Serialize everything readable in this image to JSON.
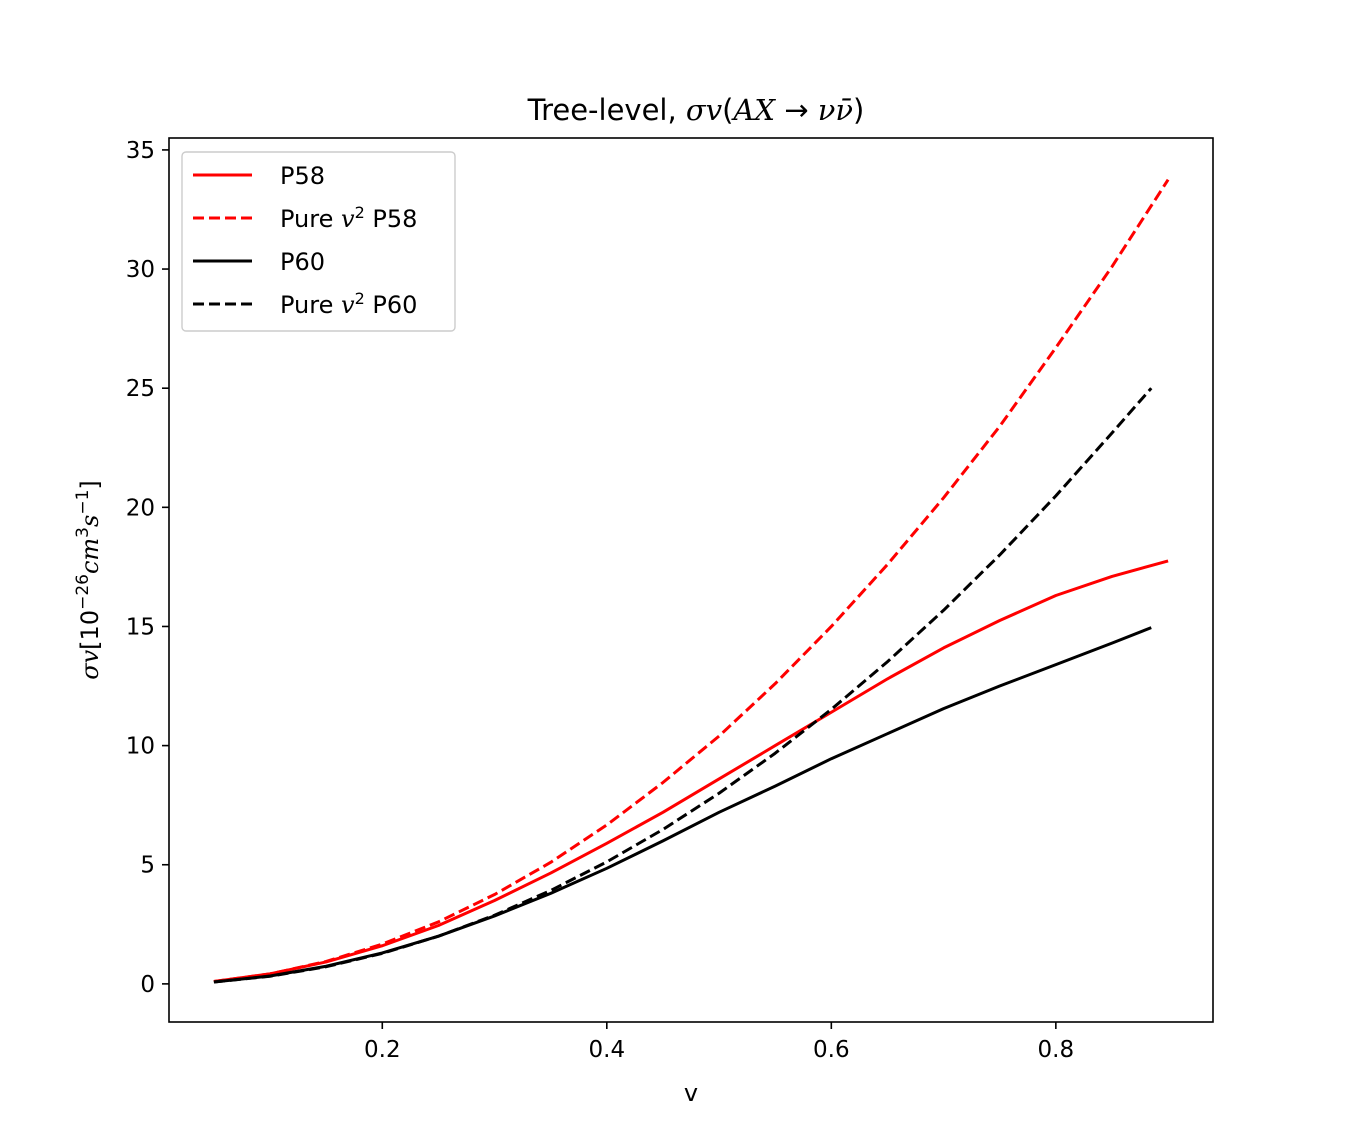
{
  "chart_data": {
    "type": "line",
    "title": "Tree-level, σv(AX → νν̄)",
    "title_parts": {
      "prefix": "Tree-level, ",
      "sigma_v": "σv",
      "open": "(",
      "initial": "AX",
      "arrow": " → ",
      "final": "νν̄",
      "close": ")"
    },
    "xlabel": "v",
    "ylabel": "σv[10⁻²⁶cm³s⁻¹]",
    "ylabel_parts": {
      "sigma_v": "σv",
      "open": "[",
      "base": "10",
      "exp1": "−26",
      "cm": "cm",
      "exp2": "3",
      "s": "s",
      "exp3": "−1",
      "close": "]"
    },
    "xlim": [
      0.01,
      0.94
    ],
    "ylim": [
      -1.6,
      35.5
    ],
    "x_ticks": [
      0.2,
      0.4,
      0.6,
      0.8
    ],
    "x_tick_labels": [
      "0.2",
      "0.4",
      "0.6",
      "0.8"
    ],
    "y_ticks": [
      0,
      5,
      10,
      15,
      20,
      25,
      30,
      35
    ],
    "y_tick_labels": [
      "0",
      "5",
      "10",
      "15",
      "20",
      "25",
      "30",
      "35"
    ],
    "grid": false,
    "legend_position": "top-left",
    "series": [
      {
        "name": "P58",
        "legend_parts": {
          "pre": "P58",
          "var": "",
          "sup": "",
          "post": ""
        },
        "color": "#ff0000",
        "dash": "solid",
        "x": [
          0.05,
          0.1,
          0.15,
          0.2,
          0.25,
          0.3,
          0.35,
          0.4,
          0.45,
          0.5,
          0.55,
          0.6,
          0.65,
          0.7,
          0.75,
          0.8,
          0.85,
          0.9
        ],
        "y": [
          0.1,
          0.42,
          0.92,
          1.6,
          2.45,
          3.5,
          4.65,
          5.9,
          7.2,
          8.6,
          10.0,
          11.4,
          12.8,
          14.1,
          15.25,
          16.3,
          17.1,
          17.75
        ]
      },
      {
        "name": "Pure v² P58",
        "legend_parts": {
          "pre": "Pure ",
          "var": "v",
          "sup": "2",
          "post": " P58"
        },
        "color": "#ff0000",
        "dash": "dashed",
        "x": [
          0.05,
          0.1,
          0.15,
          0.2,
          0.25,
          0.3,
          0.35,
          0.4,
          0.45,
          0.5,
          0.55,
          0.6,
          0.65,
          0.7,
          0.75,
          0.8,
          0.85,
          0.9
        ],
        "y": [
          0.1,
          0.42,
          0.94,
          1.67,
          2.6,
          3.75,
          5.1,
          6.67,
          8.45,
          10.4,
          12.6,
          15.0,
          17.6,
          20.4,
          23.4,
          26.7,
          30.1,
          33.75
        ]
      },
      {
        "name": "P60",
        "legend_parts": {
          "pre": "P60",
          "var": "",
          "sup": "",
          "post": ""
        },
        "color": "#000000",
        "dash": "solid",
        "x": [
          0.05,
          0.1,
          0.15,
          0.2,
          0.25,
          0.3,
          0.35,
          0.4,
          0.45,
          0.5,
          0.55,
          0.6,
          0.65,
          0.7,
          0.75,
          0.8,
          0.85,
          0.885
        ],
        "y": [
          0.08,
          0.33,
          0.74,
          1.3,
          2.0,
          2.85,
          3.8,
          4.85,
          6.0,
          7.2,
          8.3,
          9.45,
          10.5,
          11.55,
          12.5,
          13.4,
          14.3,
          14.95
        ]
      },
      {
        "name": "Pure v² P60",
        "legend_parts": {
          "pre": "Pure ",
          "var": "v",
          "sup": "2",
          "post": " P60"
        },
        "color": "#000000",
        "dash": "dashed",
        "x": [
          0.05,
          0.1,
          0.15,
          0.2,
          0.25,
          0.3,
          0.35,
          0.4,
          0.45,
          0.5,
          0.55,
          0.6,
          0.65,
          0.7,
          0.75,
          0.8,
          0.85,
          0.885
        ],
        "y": [
          0.08,
          0.32,
          0.72,
          1.28,
          2.0,
          2.88,
          3.92,
          5.12,
          6.48,
          8.0,
          9.68,
          11.52,
          13.52,
          15.68,
          18.0,
          20.48,
          23.12,
          25.0
        ]
      }
    ]
  }
}
